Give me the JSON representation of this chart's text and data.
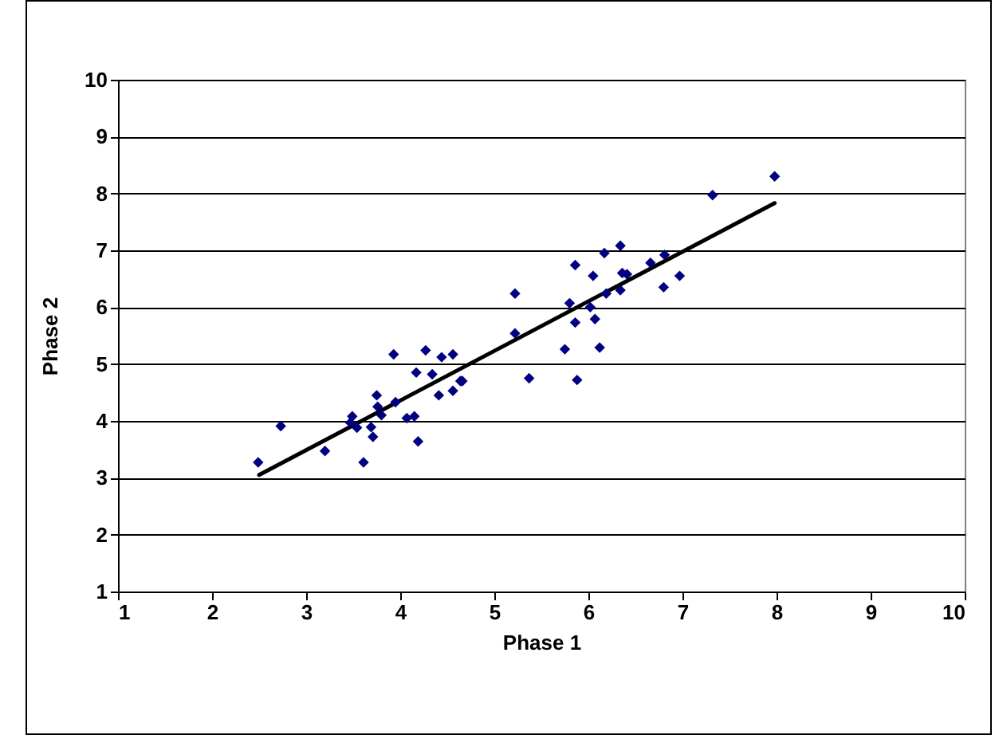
{
  "chart_data": {
    "type": "scatter",
    "xlabel": "Phase 1",
    "ylabel": "Phase 2",
    "xlim": [
      1,
      10
    ],
    "ylim": [
      1,
      10
    ],
    "xticks": [
      1,
      2,
      3,
      4,
      5,
      6,
      7,
      8,
      9,
      10
    ],
    "yticks": [
      1,
      2,
      3,
      4,
      5,
      6,
      7,
      8,
      9,
      10
    ],
    "grid": "y",
    "marker": "diamond",
    "series": [
      {
        "color": "#000080",
        "x": [
          2.49,
          2.73,
          3.2,
          3.61,
          3.49,
          3.47,
          3.54,
          3.69,
          3.71,
          3.75,
          3.76,
          3.8,
          3.93,
          3.95,
          4.07,
          4.15,
          4.19,
          4.17,
          4.27,
          4.34,
          4.44,
          4.56,
          4.41,
          4.56,
          4.64,
          4.66,
          5.22,
          5.22,
          5.37,
          5.75,
          5.8,
          5.86,
          5.86,
          5.88,
          6.02,
          6.05,
          6.07,
          6.12,
          6.17,
          6.19,
          6.34,
          6.34,
          6.36,
          6.41,
          6.66,
          6.8,
          6.81,
          6.97,
          7.32,
          7.98
        ],
        "values": [
          3.27,
          3.91,
          3.47,
          3.27,
          4.08,
          3.97,
          3.88,
          3.89,
          3.72,
          4.45,
          4.25,
          4.1,
          5.17,
          4.33,
          4.05,
          4.08,
          3.64,
          4.85,
          5.24,
          4.82,
          5.12,
          5.17,
          4.45,
          4.53,
          4.7,
          4.7,
          6.24,
          5.54,
          4.75,
          5.26,
          6.07,
          6.74,
          5.73,
          4.72,
          6.0,
          6.55,
          5.79,
          5.29,
          6.95,
          6.24,
          7.08,
          6.3,
          6.6,
          6.58,
          6.78,
          6.35,
          6.92,
          6.55,
          7.97,
          8.3
        ]
      },
      {
        "type": "line",
        "marker": "none",
        "color": "#000000",
        "x": [
          2.5,
          7.98
        ],
        "values": [
          3.05,
          7.83
        ]
      }
    ]
  }
}
